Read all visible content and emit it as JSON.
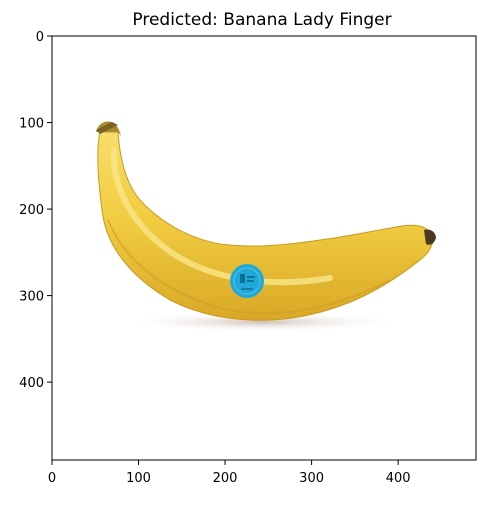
{
  "figure": {
    "title": "Predicted: Banana Lady Finger"
  },
  "image": {
    "subject": "banana-photo",
    "content_width": 490,
    "content_height": 490
  },
  "axes": {
    "x_range": [
      0,
      490
    ],
    "y_range": [
      0,
      490
    ],
    "y_inverted": true,
    "x_ticks": [
      {
        "value": 0,
        "label": "0"
      },
      {
        "value": 100,
        "label": "100"
      },
      {
        "value": 200,
        "label": "200"
      },
      {
        "value": 300,
        "label": "300"
      },
      {
        "value": 400,
        "label": "400"
      }
    ],
    "y_ticks": [
      {
        "value": 0,
        "label": "0"
      },
      {
        "value": 100,
        "label": "100"
      },
      {
        "value": 200,
        "label": "200"
      },
      {
        "value": 300,
        "label": "300"
      },
      {
        "value": 400,
        "label": "400"
      }
    ]
  },
  "colors": {
    "banana_body": "#f1cd43",
    "banana_shadow": "#d9a826",
    "banana_highlight": "#f8e27a",
    "stem": "#a98b2f",
    "tip": "#4a3a1f",
    "sticker": "#20a8d8",
    "axis": "#000000"
  }
}
